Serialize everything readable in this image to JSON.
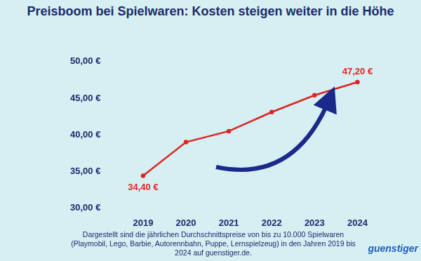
{
  "chart_data": {
    "type": "line",
    "title": "Preisboom bei Spielwaren: Kosten steigen weiter in die Höhe",
    "note": "Dargestellt sind die jährlichen Durchschnittspreise von bis zu 10.000 Spielwaren (Playmobil, Lego, Barbie, Autorennbahn, Puppe, Lernspielzeug) in den Jahren 2019 bis 2024 auf guenstiger.de.",
    "brand": "guenstiger",
    "categories": [
      "2019",
      "2020",
      "2021",
      "2022",
      "2023",
      "2024"
    ],
    "values": [
      34.4,
      39.0,
      40.5,
      43.1,
      45.4,
      47.2
    ],
    "value_labels": [
      "34,40 €",
      null,
      null,
      null,
      null,
      "47,20 €"
    ],
    "data_labels": true,
    "color": "#e02424",
    "ylim": [
      30,
      50
    ],
    "yticks": [
      {
        "value": 30,
        "label": "30,00 €"
      },
      {
        "value": 35,
        "label": "35,00 €"
      },
      {
        "value": 40,
        "label": "40,00 €"
      },
      {
        "value": 45,
        "label": "45,00 €"
      },
      {
        "value": 50,
        "label": "50,00 €"
      }
    ],
    "grid": false
  }
}
